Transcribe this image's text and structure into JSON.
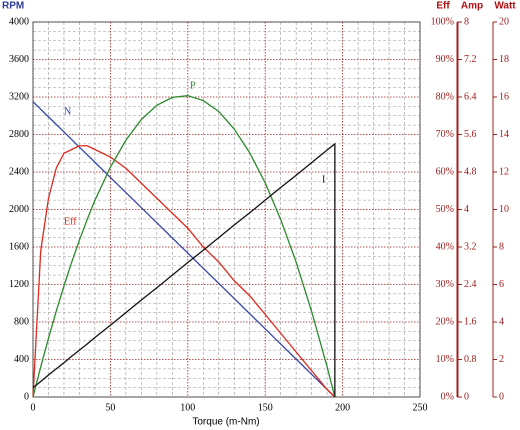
{
  "chart_data": {
    "type": "line",
    "xlabel": "Torque (m-Nm)",
    "ylabel": "RPM",
    "y2label": "Eff",
    "y3label": "Amp",
    "y4label": "Watt",
    "xlim": [
      0,
      250
    ],
    "xticks": [
      0,
      50,
      100,
      150,
      200,
      250
    ],
    "ylim": [
      0,
      4000
    ],
    "yticks": [
      0,
      400,
      800,
      1200,
      1600,
      2000,
      2400,
      2800,
      3200,
      3600,
      4000
    ],
    "y2lim": [
      0,
      100
    ],
    "y2ticks": [
      {
        "value": 0,
        "label": "0%"
      },
      {
        "value": 10,
        "label": "10%"
      },
      {
        "value": 20,
        "label": "20%"
      },
      {
        "value": 30,
        "label": "30%"
      },
      {
        "value": 40,
        "label": "40%"
      },
      {
        "value": 50,
        "label": "50%"
      },
      {
        "value": 60,
        "label": "60%"
      },
      {
        "value": 70,
        "label": "70%"
      },
      {
        "value": 80,
        "label": "80%"
      },
      {
        "value": 90,
        "label": "90%"
      },
      {
        "value": 100,
        "label": "100%"
      }
    ],
    "y3lim": [
      0,
      8
    ],
    "y3ticks": [
      0,
      0.8,
      1.6,
      2.4,
      3.2,
      4,
      4.8,
      5.6,
      6.4,
      7.2,
      8
    ],
    "y4lim": [
      0,
      20
    ],
    "y4ticks": [
      0,
      2,
      4,
      6,
      8,
      10,
      12,
      14,
      16,
      18,
      20
    ],
    "grid": true,
    "x": [
      0,
      5,
      10,
      15,
      20,
      25,
      30,
      35,
      40,
      50,
      60,
      70,
      80,
      90,
      100,
      110,
      120,
      130,
      140,
      150,
      160,
      170,
      180,
      190,
      195,
      195
    ],
    "series": [
      {
        "name": "N",
        "color": "#3646a8",
        "axis": "y",
        "values": [
          3150,
          3069,
          2988,
          2908,
          2827,
          2746,
          2665,
          2585,
          2504,
          2342,
          2181,
          2019,
          1858,
          1696,
          1535,
          1373,
          1212,
          1050,
          888,
          727,
          565,
          404,
          242,
          81,
          0,
          0
        ]
      },
      {
        "name": "Eff",
        "color": "#e02a1e",
        "axis": "y2",
        "values": [
          0,
          39,
          53,
          61,
          65,
          66,
          67,
          67,
          66,
          64,
          61,
          57,
          53,
          49,
          45,
          40,
          36,
          31,
          27,
          22,
          17,
          12,
          7,
          2,
          0,
          0
        ]
      },
      {
        "name": "P",
        "color": "#2a8a2a",
        "axis": "y4",
        "values": [
          0,
          1.61,
          3.13,
          4.57,
          5.92,
          7.19,
          8.37,
          9.47,
          10.49,
          12.26,
          13.7,
          14.8,
          15.56,
          15.98,
          16.07,
          15.81,
          15.23,
          14.29,
          13.02,
          11.42,
          9.47,
          7.19,
          4.56,
          1.61,
          0,
          0
        ]
      },
      {
        "name": "I",
        "color": "#111111",
        "axis": "y3",
        "values": [
          0.2,
          0.33,
          0.47,
          0.6,
          0.73,
          0.87,
          1.0,
          1.13,
          1.27,
          1.53,
          1.8,
          2.07,
          2.33,
          2.6,
          2.87,
          3.13,
          3.4,
          3.67,
          3.93,
          4.2,
          4.47,
          4.73,
          5.0,
          5.27,
          5.4,
          0
        ]
      }
    ]
  }
}
